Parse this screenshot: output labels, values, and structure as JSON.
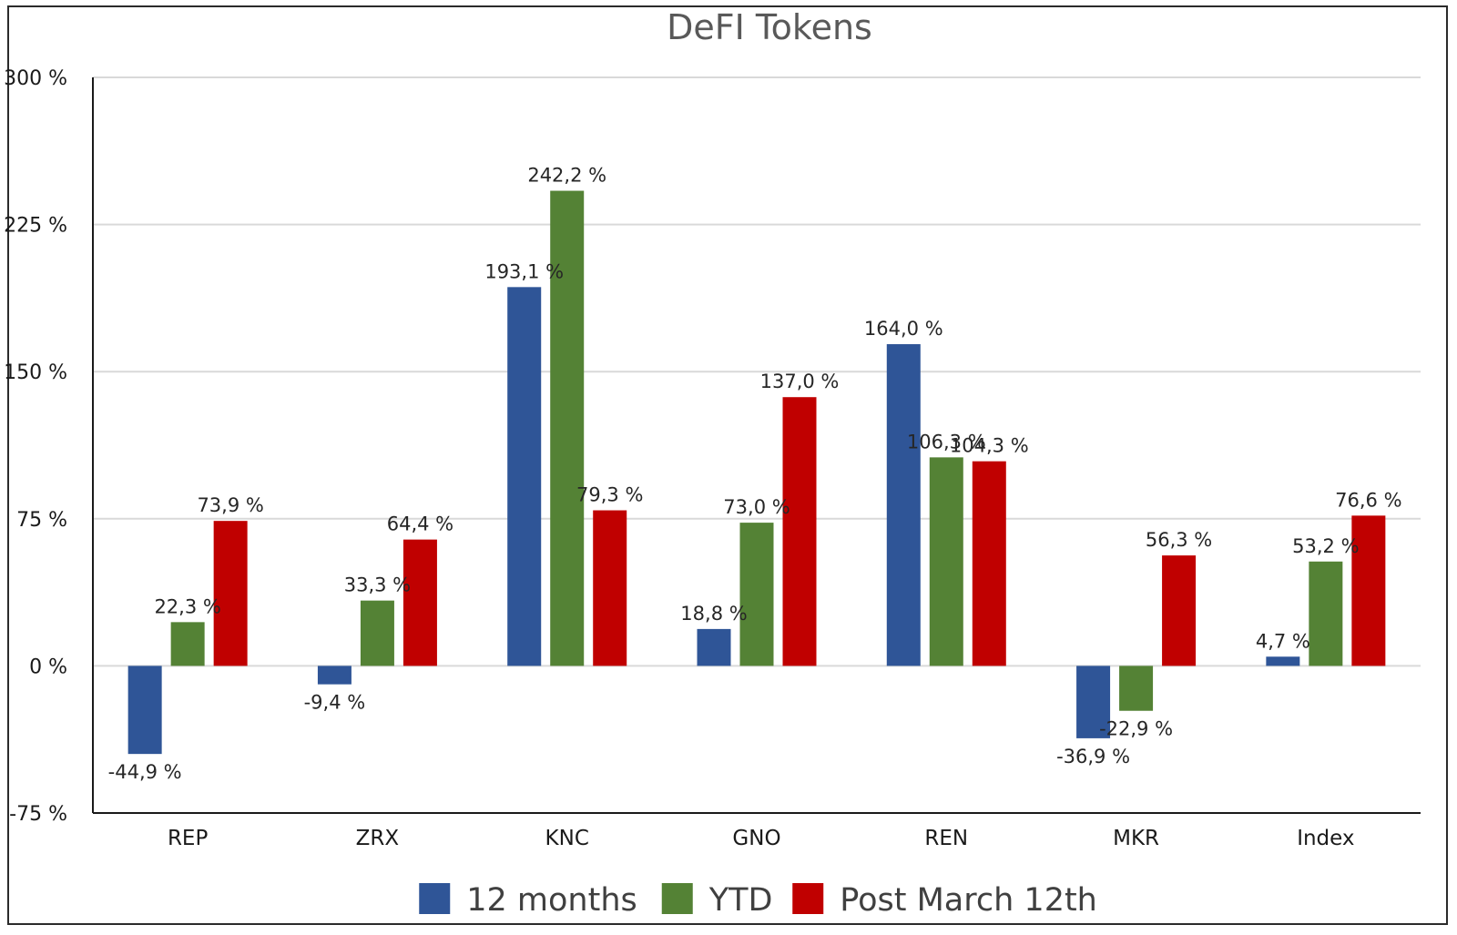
{
  "chart_data": {
    "type": "bar",
    "title": "DeFI Tokens",
    "xlabel": "",
    "ylabel": "",
    "ylim": [
      -75,
      300
    ],
    "yticks": [
      -75,
      0,
      75,
      150,
      225,
      300
    ],
    "ytick_labels": [
      "-75 %",
      "0 %",
      "75 %",
      "150 %",
      "225 %",
      "300 %"
    ],
    "grid": true,
    "legend_position": "bottom",
    "categories": [
      "REP",
      "ZRX",
      "KNC",
      "GNO",
      "REN",
      "MKR",
      "Index"
    ],
    "series": [
      {
        "name": "12 months",
        "color": "#2f5597",
        "values": [
          -44.9,
          -9.4,
          193.1,
          18.8,
          164.0,
          -36.9,
          4.7
        ],
        "labels": [
          "-44,9 %",
          "-9,4 %",
          "193,1 %",
          "18,8 %",
          "164,0 %",
          "-36,9 %",
          "4,7 %"
        ]
      },
      {
        "name": "YTD",
        "color": "#548235",
        "values": [
          22.3,
          33.3,
          242.2,
          73.0,
          106.3,
          -22.9,
          53.2
        ],
        "labels": [
          "22,3 %",
          "33,3 %",
          "242,2 %",
          "73,0 %",
          "106,3 %",
          "-22,9 %",
          "53,2 %"
        ]
      },
      {
        "name": "Post March 12th",
        "color": "#c00000",
        "values": [
          73.9,
          64.4,
          79.3,
          137.0,
          104.3,
          56.3,
          76.6
        ],
        "labels": [
          "73,9 %",
          "64,4 %",
          "79,3 %",
          "137,0 %",
          "104,3 %",
          "56,3 %",
          "76,6 %"
        ]
      }
    ]
  }
}
